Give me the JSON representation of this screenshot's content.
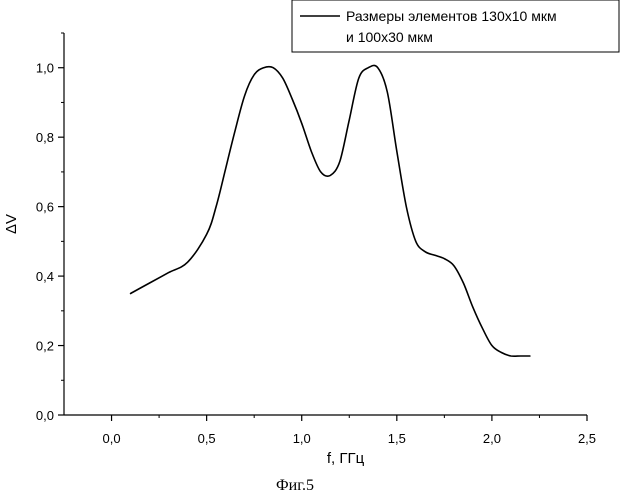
{
  "chart_data": {
    "type": "line",
    "title": "",
    "xlabel": "f, ГГц",
    "ylabel": "ΔV",
    "xlim": [
      -0.25,
      2.5
    ],
    "ylim": [
      0.0,
      1.1
    ],
    "x_ticks": [
      {
        "value": 0.0,
        "label": "0,0"
      },
      {
        "value": 0.5,
        "label": "0,5"
      },
      {
        "value": 1.0,
        "label": "1,0"
      },
      {
        "value": 1.5,
        "label": "1,5"
      },
      {
        "value": 2.0,
        "label": "2,0"
      },
      {
        "value": 2.5,
        "label": "2,5"
      }
    ],
    "y_ticks": [
      {
        "value": 0.0,
        "label": "0,0"
      },
      {
        "value": 0.2,
        "label": "0,2"
      },
      {
        "value": 0.4,
        "label": "0,4"
      },
      {
        "value": 0.6,
        "label": "0,6"
      },
      {
        "value": 0.8,
        "label": "0,8"
      },
      {
        "value": 1.0,
        "label": "1,0"
      }
    ],
    "grid": false,
    "legend": {
      "placement": "top-right",
      "lines": [
        "Размеры элементов 130х10 мкм",
        "и 100х30 мкм"
      ]
    },
    "series": [
      {
        "color": "#000000",
        "x": [
          0.1,
          0.2,
          0.3,
          0.4,
          0.5,
          0.55,
          0.6,
          0.65,
          0.7,
          0.75,
          0.8,
          0.85,
          0.9,
          0.95,
          1.0,
          1.05,
          1.1,
          1.15,
          1.2,
          1.25,
          1.3,
          1.35,
          1.4,
          1.45,
          1.5,
          1.55,
          1.6,
          1.65,
          1.7,
          1.75,
          1.8,
          1.85,
          1.9,
          1.95,
          2.0,
          2.05,
          2.1,
          2.15,
          2.2
        ],
        "y": [
          0.35,
          0.38,
          0.41,
          0.44,
          0.52,
          0.6,
          0.71,
          0.82,
          0.92,
          0.98,
          1.0,
          1.0,
          0.97,
          0.91,
          0.84,
          0.76,
          0.7,
          0.69,
          0.73,
          0.85,
          0.97,
          1.0,
          1.0,
          0.93,
          0.76,
          0.6,
          0.5,
          0.47,
          0.46,
          0.45,
          0.43,
          0.38,
          0.31,
          0.25,
          0.2,
          0.18,
          0.17,
          0.17,
          0.17
        ]
      }
    ]
  },
  "caption": "Фиг.5"
}
